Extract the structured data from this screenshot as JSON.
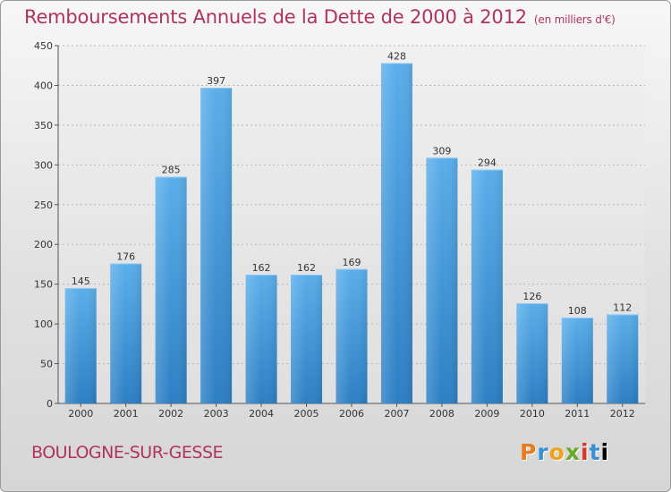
{
  "chart_data": {
    "type": "bar",
    "title": "Remboursements Annuels de la Dette de 2000 à 2012",
    "subtitle": "(en milliers d'€)",
    "categories": [
      "2000",
      "2001",
      "2002",
      "2003",
      "2004",
      "2005",
      "2006",
      "2007",
      "2008",
      "2009",
      "2010",
      "2011",
      "2012"
    ],
    "values": [
      145,
      176,
      285,
      397,
      162,
      162,
      169,
      428,
      309,
      294,
      126,
      108,
      112
    ],
    "ylim": [
      0,
      450
    ],
    "yticks": [
      0,
      50,
      100,
      150,
      200,
      250,
      300,
      350,
      400,
      450
    ],
    "grid": true,
    "bar_color": "#4e9fe0"
  },
  "footer": {
    "town": "BOULOGNE-SUR-GESSE",
    "logo": [
      "P",
      "r",
      "o",
      "x",
      "i",
      "t",
      "i"
    ]
  }
}
